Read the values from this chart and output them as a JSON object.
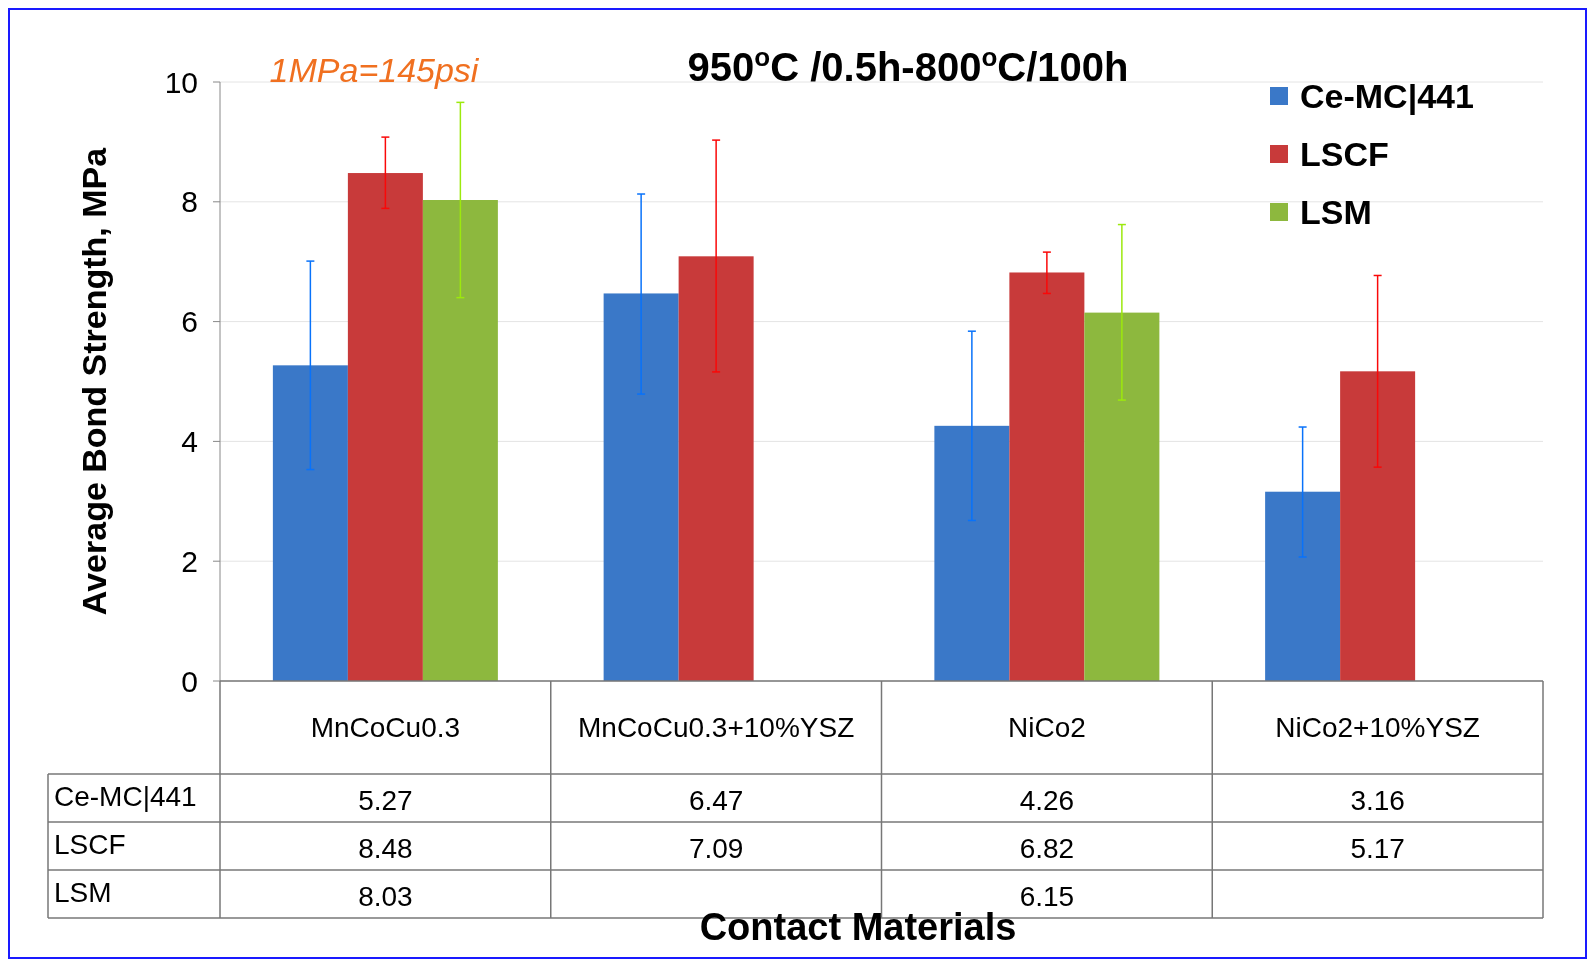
{
  "chart_data": {
    "type": "bar",
    "title": "950$^{o}$C /0.5h-800$^{o}$C/100h",
    "xlabel": "Contact Materials",
    "ylabel": "Average Bond Strength, MPa",
    "annotations": [
      "1MPa=145psi"
    ],
    "categories": [
      "MnCoCu0.3",
      "MnCoCu0.3+10%YSZ",
      "NiCo2",
      "NiCo2+10%YSZ"
    ],
    "series": [
      {
        "name": "Ce-MC|441",
        "color": "#3a78c8",
        "values": [
          5.27,
          6.47,
          4.26,
          3.16
        ],
        "errors": [
          [
            3.53,
            7.01
          ],
          [
            4.79,
            8.13
          ],
          [
            2.68,
            5.84
          ],
          [
            2.07,
            4.24
          ]
        ]
      },
      {
        "name": "LSCF",
        "color": "#c83a3a",
        "values": [
          8.48,
          7.09,
          6.82,
          5.17
        ],
        "errors": [
          [
            7.89,
            9.08
          ],
          [
            5.16,
            9.03
          ],
          [
            6.47,
            7.16
          ],
          [
            3.57,
            6.77
          ]
        ]
      },
      {
        "name": "LSM",
        "color": "#8db83e",
        "values": [
          8.03,
          null,
          6.15,
          null
        ],
        "errors": [
          [
            6.4,
            9.66
          ],
          null,
          [
            4.69,
            7.62
          ],
          null
        ]
      }
    ],
    "ylim": [
      0,
      10
    ],
    "yticks": [
      0,
      2,
      4,
      6,
      8,
      10
    ],
    "grid": "y",
    "legend": "top right",
    "data_labels": true
  }
}
